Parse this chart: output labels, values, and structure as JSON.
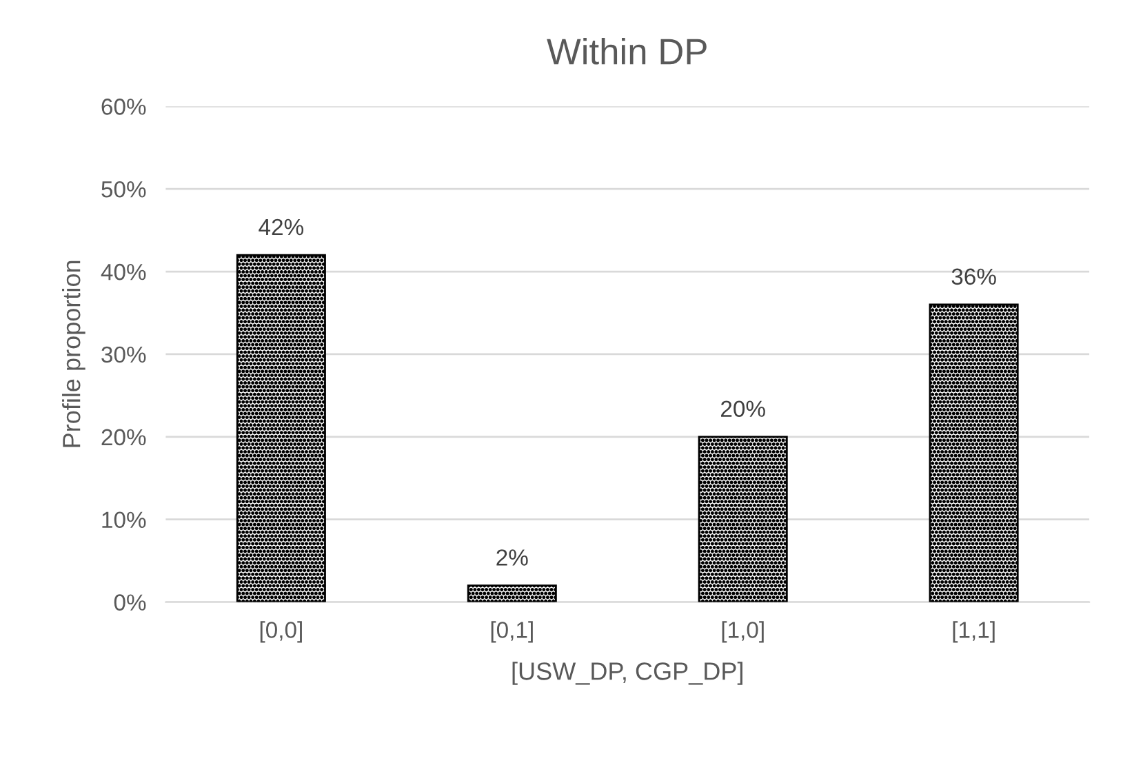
{
  "chart_data": {
    "type": "bar",
    "title": "Within DP",
    "xlabel": "[USW_DP, CGP_DP]",
    "ylabel": "Profile proportion",
    "categories": [
      "[0,0]",
      "[0,1]",
      "[1,0]",
      "[1,1]"
    ],
    "values": [
      42,
      2,
      20,
      36
    ],
    "value_labels": [
      "42%",
      "2%",
      "20%",
      "36%"
    ],
    "color": "#000000",
    "ylim": [
      0,
      60
    ],
    "yticks": [
      {
        "value": 0,
        "label": "0%"
      },
      {
        "value": 10,
        "label": "10%"
      },
      {
        "value": 20,
        "label": "20%"
      },
      {
        "value": 30,
        "label": "30%"
      },
      {
        "value": 40,
        "label": "40%"
      },
      {
        "value": 50,
        "label": "50%"
      },
      {
        "value": 60,
        "label": "60%"
      }
    ],
    "grid": "y"
  }
}
